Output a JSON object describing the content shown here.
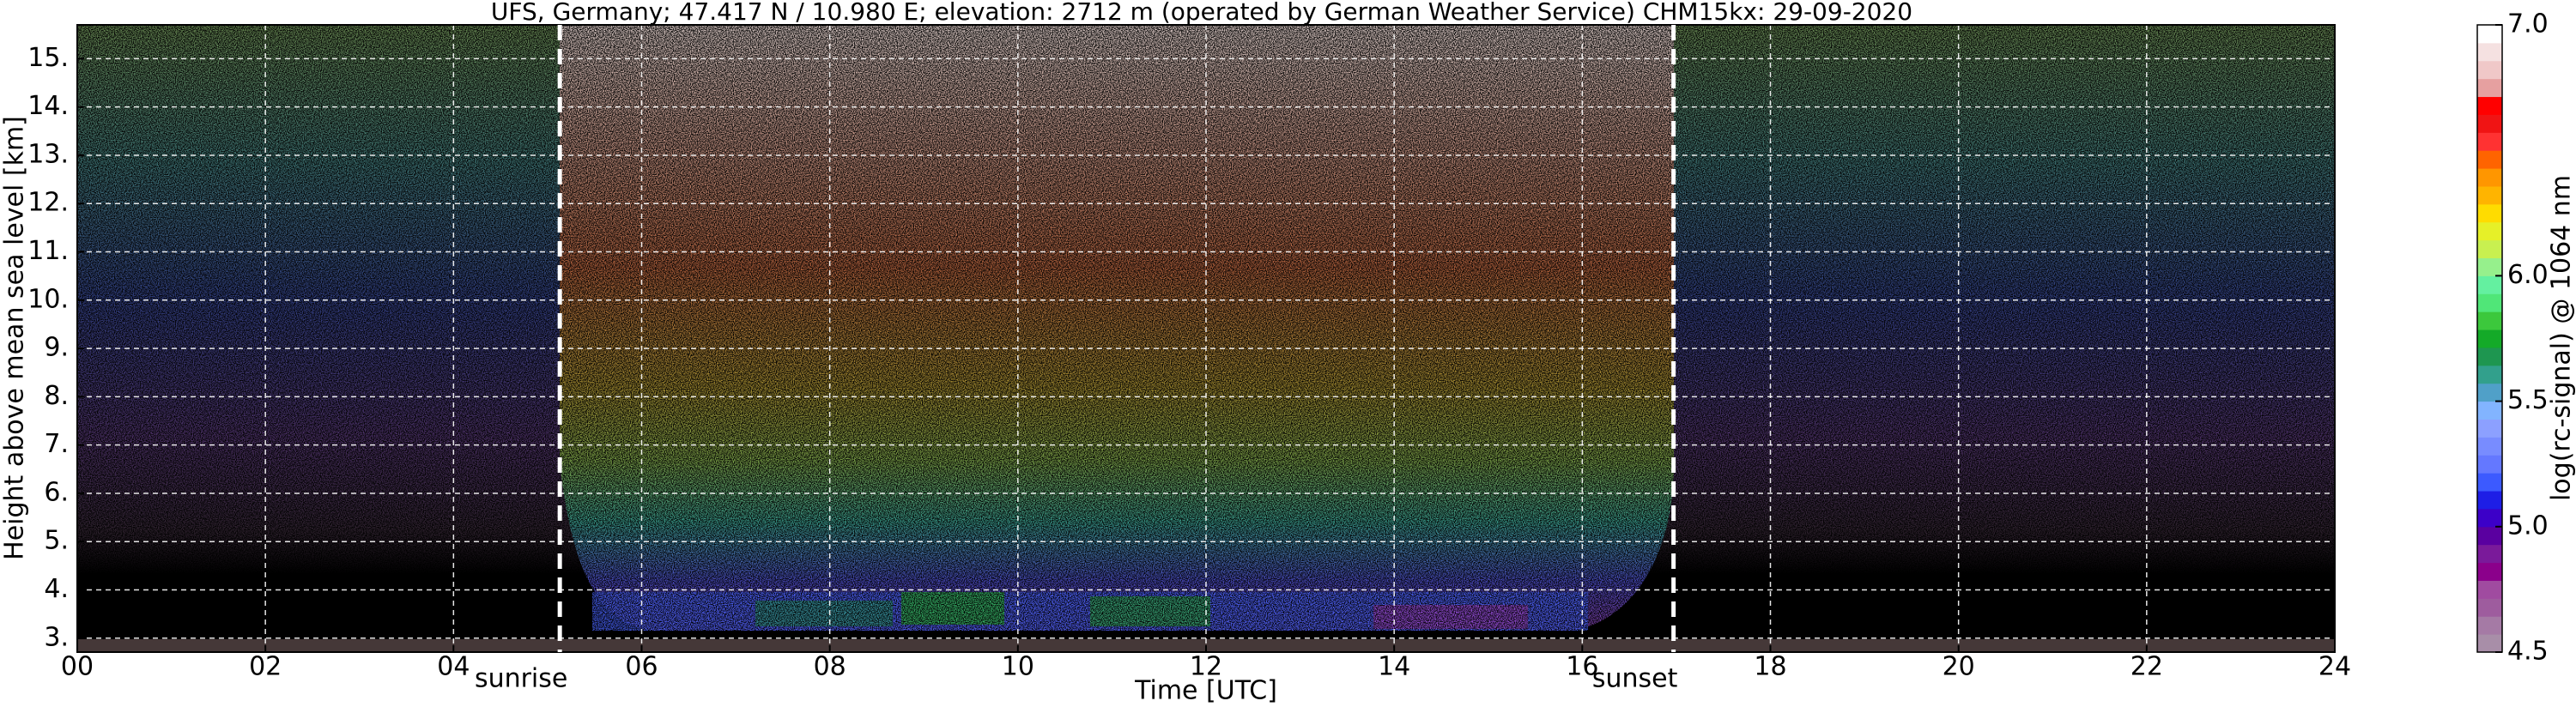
{
  "chart_data": {
    "type": "heatmap",
    "title": "UFS, Germany; 47.417 N / 10.980 E; elevation: 2712 m  (operated by German Weather Service)    CHM15kx: 29-09-2020",
    "x_label": "Time [UTC]",
    "y_label": "Height above mean sea level [km]",
    "xlim": [
      0,
      24
    ],
    "xticks": [
      {
        "value": 0,
        "label": "00"
      },
      {
        "value": 2,
        "label": "02"
      },
      {
        "value": 4,
        "label": "04"
      },
      {
        "value": 6,
        "label": "06"
      },
      {
        "value": 8,
        "label": "08"
      },
      {
        "value": 10,
        "label": "10"
      },
      {
        "value": 12,
        "label": "12"
      },
      {
        "value": 14,
        "label": "14"
      },
      {
        "value": 16,
        "label": "16"
      },
      {
        "value": 18,
        "label": "18"
      },
      {
        "value": 20,
        "label": "20"
      },
      {
        "value": 22,
        "label": "22"
      },
      {
        "value": 24,
        "label": "24"
      }
    ],
    "ylim": [
      2.712,
      15.7
    ],
    "yticks": [
      {
        "value": 3,
        "label": "3."
      },
      {
        "value": 4,
        "label": "4."
      },
      {
        "value": 5,
        "label": "5."
      },
      {
        "value": 6,
        "label": "6."
      },
      {
        "value": 7,
        "label": "7."
      },
      {
        "value": 8,
        "label": "8."
      },
      {
        "value": 9,
        "label": "9."
      },
      {
        "value": 10,
        "label": "10."
      },
      {
        "value": 11,
        "label": "11."
      },
      {
        "value": 12,
        "label": "12."
      },
      {
        "value": 13,
        "label": "13."
      },
      {
        "value": 14,
        "label": "14."
      },
      {
        "value": 15,
        "label": "15."
      }
    ],
    "grid": true,
    "annotations": [
      {
        "text": "sunrise",
        "x": 5.13
      },
      {
        "text": "sunset",
        "x": 16.97
      }
    ],
    "colorbar": {
      "label": "log(rc-signal) @ 1064 nm",
      "lim": [
        4.5,
        7.0
      ],
      "ticks": [
        {
          "value": 4.5,
          "label": "4.5"
        },
        {
          "value": 5,
          "label": "5.0"
        },
        {
          "value": 5.5,
          "label": "5.5"
        },
        {
          "value": 6,
          "label": "6.0"
        },
        {
          "value": 7,
          "label": "7.0"
        }
      ],
      "colors": [
        "#a88ea8",
        "#a57aa5",
        "#9e5c9e",
        "#a04ba0",
        "#8b008b",
        "#7a1a9a",
        "#5a00a0",
        "#3c00c8",
        "#1e1ee6",
        "#3c5aff",
        "#6478ff",
        "#788cff",
        "#8ca0ff",
        "#82b4ff",
        "#50a0c8",
        "#32a08c",
        "#1e9650",
        "#14aa28",
        "#3cc83c",
        "#50e678",
        "#64f0a0",
        "#96f08c",
        "#c8f050",
        "#e6f028",
        "#ffdc00",
        "#ffb400",
        "#ff9600",
        "#ff6400",
        "#ff3232",
        "#f01414",
        "#ff0000",
        "#e6a0a0",
        "#f0c8c8",
        "#f5e1e1",
        "#ffffff"
      ]
    }
  }
}
